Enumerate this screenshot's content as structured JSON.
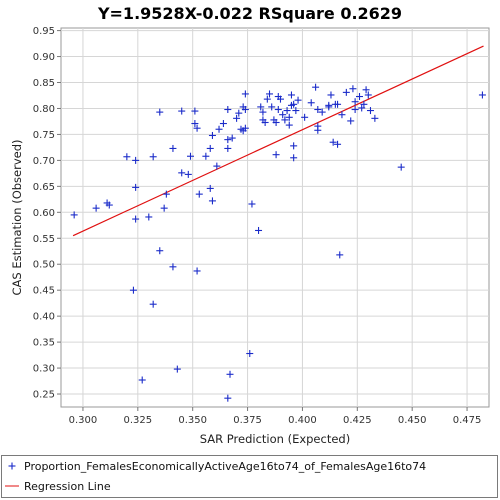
{
  "chart_data": {
    "type": "scatter",
    "title": "Y=1.9528X-0.022    RSquare 0.2629",
    "xlabel": "SAR Prediction (Expected)",
    "ylabel": "CAS Estimation (Observed)",
    "xlim": [
      0.29,
      0.485
    ],
    "ylim": [
      0.225,
      0.955
    ],
    "x_ticks": [
      "0.300",
      "0.325",
      "0.350",
      "0.375",
      "0.400",
      "0.425",
      "0.450",
      "0.475"
    ],
    "y_ticks": [
      "0.25",
      "0.30",
      "0.35",
      "0.40",
      "0.45",
      "0.50",
      "0.55",
      "0.60",
      "0.65",
      "0.70",
      "0.75",
      "0.80",
      "0.85",
      "0.90",
      "0.95"
    ],
    "grid": true,
    "legend_position": "bottom",
    "series": [
      {
        "name": "Proportion_FemalesEconomicallyActiveAge16to74_of_FemalesAge16to74",
        "color": "#1a2bc9",
        "marker": "plus",
        "points": [
          [
            0.296,
            0.595
          ],
          [
            0.306,
            0.608
          ],
          [
            0.311,
            0.618
          ],
          [
            0.312,
            0.614
          ],
          [
            0.32,
            0.707
          ],
          [
            0.324,
            0.7
          ],
          [
            0.324,
            0.648
          ],
          [
            0.324,
            0.587
          ],
          [
            0.323,
            0.45
          ],
          [
            0.327,
            0.277
          ],
          [
            0.33,
            0.591
          ],
          [
            0.332,
            0.707
          ],
          [
            0.332,
            0.423
          ],
          [
            0.335,
            0.793
          ],
          [
            0.335,
            0.526
          ],
          [
            0.337,
            0.608
          ],
          [
            0.338,
            0.635
          ],
          [
            0.341,
            0.723
          ],
          [
            0.341,
            0.495
          ],
          [
            0.343,
            0.298
          ],
          [
            0.345,
            0.795
          ],
          [
            0.345,
            0.676
          ],
          [
            0.348,
            0.673
          ],
          [
            0.349,
            0.708
          ],
          [
            0.351,
            0.795
          ],
          [
            0.351,
            0.771
          ],
          [
            0.352,
            0.762
          ],
          [
            0.352,
            0.487
          ],
          [
            0.353,
            0.635
          ],
          [
            0.356,
            0.708
          ],
          [
            0.358,
            0.723
          ],
          [
            0.358,
            0.646
          ],
          [
            0.359,
            0.748
          ],
          [
            0.359,
            0.622
          ],
          [
            0.361,
            0.689
          ],
          [
            0.362,
            0.76
          ],
          [
            0.364,
            0.771
          ],
          [
            0.366,
            0.798
          ],
          [
            0.366,
            0.74
          ],
          [
            0.366,
            0.723
          ],
          [
            0.366,
            0.242
          ],
          [
            0.367,
            0.288
          ],
          [
            0.368,
            0.743
          ],
          [
            0.37,
            0.781
          ],
          [
            0.371,
            0.791
          ],
          [
            0.372,
            0.76
          ],
          [
            0.373,
            0.803
          ],
          [
            0.373,
            0.757
          ],
          [
            0.374,
            0.828
          ],
          [
            0.374,
            0.798
          ],
          [
            0.374,
            0.762
          ],
          [
            0.376,
            0.328
          ],
          [
            0.377,
            0.616
          ],
          [
            0.38,
            0.565
          ],
          [
            0.381,
            0.803
          ],
          [
            0.382,
            0.793
          ],
          [
            0.382,
            0.778
          ],
          [
            0.383,
            0.773
          ],
          [
            0.384,
            0.818
          ],
          [
            0.385,
            0.828
          ],
          [
            0.386,
            0.803
          ],
          [
            0.387,
            0.778
          ],
          [
            0.388,
            0.711
          ],
          [
            0.388,
            0.773
          ],
          [
            0.389,
            0.798
          ],
          [
            0.389,
            0.823
          ],
          [
            0.39,
            0.818
          ],
          [
            0.391,
            0.788
          ],
          [
            0.392,
            0.778
          ],
          [
            0.393,
            0.796
          ],
          [
            0.394,
            0.783
          ],
          [
            0.394,
            0.768
          ],
          [
            0.395,
            0.826
          ],
          [
            0.395,
            0.806
          ],
          [
            0.396,
            0.808
          ],
          [
            0.396,
            0.728
          ],
          [
            0.396,
            0.705
          ],
          [
            0.397,
            0.796
          ],
          [
            0.398,
            0.816
          ],
          [
            0.401,
            0.783
          ],
          [
            0.404,
            0.811
          ],
          [
            0.406,
            0.841
          ],
          [
            0.407,
            0.798
          ],
          [
            0.407,
            0.766
          ],
          [
            0.407,
            0.758
          ],
          [
            0.409,
            0.793
          ],
          [
            0.412,
            0.806
          ],
          [
            0.412,
            0.803
          ],
          [
            0.413,
            0.826
          ],
          [
            0.414,
            0.735
          ],
          [
            0.415,
            0.808
          ],
          [
            0.416,
            0.808
          ],
          [
            0.416,
            0.731
          ],
          [
            0.417,
            0.518
          ],
          [
            0.418,
            0.788
          ],
          [
            0.42,
            0.831
          ],
          [
            0.422,
            0.776
          ],
          [
            0.423,
            0.838
          ],
          [
            0.424,
            0.798
          ],
          [
            0.424,
            0.813
          ],
          [
            0.426,
            0.823
          ],
          [
            0.427,
            0.801
          ],
          [
            0.428,
            0.808
          ],
          [
            0.429,
            0.836
          ],
          [
            0.43,
            0.826
          ],
          [
            0.431,
            0.796
          ],
          [
            0.433,
            0.781
          ],
          [
            0.445,
            0.687
          ],
          [
            0.482,
            0.826
          ]
        ]
      },
      {
        "name": "Regression Line",
        "color": "#e01010",
        "line": {
          "slope": 1.9528,
          "intercept": -0.022,
          "x_start": 0.2955,
          "x_end": 0.4825
        }
      }
    ]
  }
}
